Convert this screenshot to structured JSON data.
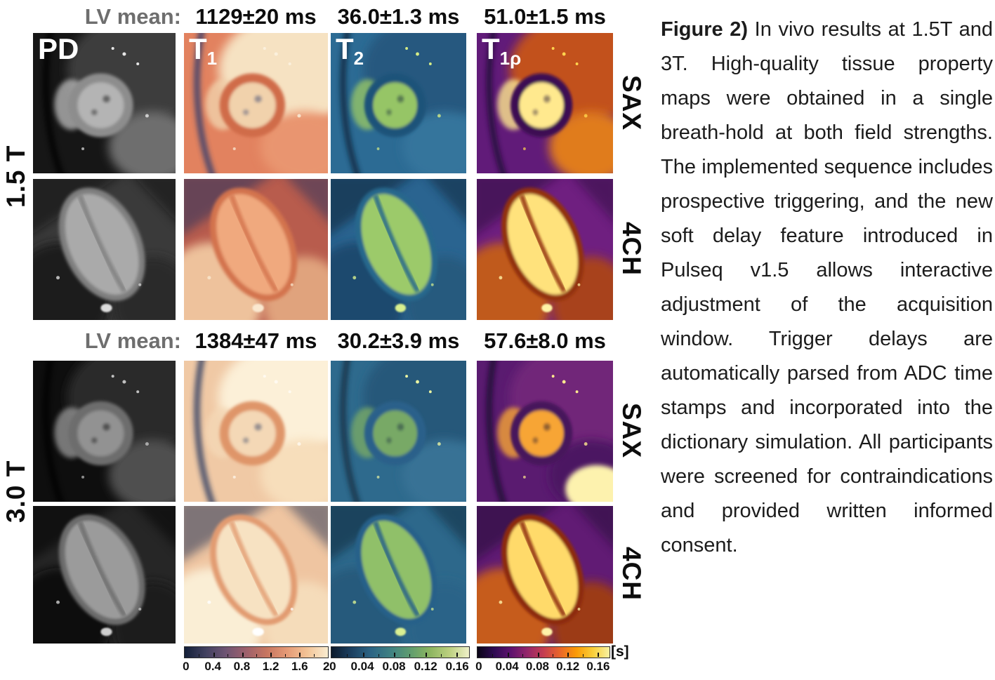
{
  "headers": [
    {
      "prefix": "LV mean:",
      "values": [
        "1129±20 ms",
        "36.0±1.3 ms",
        "51.0±1.5 ms"
      ]
    },
    {
      "prefix": "LV mean:",
      "values": [
        "1384±47 ms",
        "30.2±3.9 ms",
        "57.6±8.0 ms"
      ]
    }
  ],
  "side_labels": {
    "left": [
      "1.5 T",
      "3.0 T"
    ],
    "right": [
      "SAX",
      "4CH",
      "SAX",
      "4CH"
    ]
  },
  "caption": {
    "title": "Figure 2)",
    "body": " In vivo results at 1.5T and 3T. High-quality tissue property maps were obtained in a single breath-hold at both field strengths. The implemented sequence includes prospective triggering, and the new soft delay feature introduced in Pulseq v1.5 allows interactive adjustment of the acquisition window. Trigger delays are automatically parsed from ADC time stamps and incorporated into the dictionary simulation. All participants were screened for contraindications and provided written informed consent."
  },
  "colorbars": [
    {
      "ticks": [
        "0",
        "0.4",
        "0.8",
        "1.2",
        "1.6",
        "2"
      ],
      "span_pct": 100,
      "unit": "",
      "colors": [
        "#131f38",
        "#40405f",
        "#6e5473",
        "#9d606c",
        "#c77560",
        "#e59a76",
        "#f3c497",
        "#f9ecd0"
      ]
    },
    {
      "ticks": [
        "0",
        "0.04",
        "0.08",
        "0.12",
        "0.16"
      ],
      "span_pct": 91,
      "unit": "",
      "colors": [
        "#0c1a2c",
        "#1b3f5f",
        "#2c6484",
        "#3f8183",
        "#5f9c6f",
        "#8cb560",
        "#bcd07f",
        "#eff0c8"
      ]
    },
    {
      "ticks": [
        "0",
        "0.04",
        "0.08",
        "0.12",
        "0.16"
      ],
      "span_pct": 91,
      "unit": "[s]",
      "colors": [
        "#090516",
        "#2e0a52",
        "#5d126e",
        "#93256a",
        "#c43d51",
        "#e9662a",
        "#fb9b06",
        "#f9cf3a",
        "#f7f1a2"
      ]
    }
  ],
  "panels": [
    {
      "name": "pd-1-5t-sax",
      "shape": "sax",
      "label": {
        "base": "PD",
        "sub": ""
      },
      "palette": {
        "bg": "#161616",
        "tissue": "#3d3d3d",
        "tissue2": "#6e6e6e",
        "dark": "#000000",
        "myo": "#8d8d8d",
        "pool": "#b4b4b4",
        "speck": "#e6e6e6"
      }
    },
    {
      "name": "t1-1-5t-sax",
      "shape": "sax",
      "label": {
        "base": "T",
        "sub": "1"
      },
      "palette": {
        "bg": "#e2825f",
        "tissue": "#f6e2c2",
        "tissue2": "#e9956f",
        "dark": "#2c3a6e",
        "myo": "#d06c49",
        "pool": "#f1d2ac",
        "speck": "#fbf0dc"
      }
    },
    {
      "name": "t2-1-5t-sax",
      "shape": "sax",
      "label": {
        "base": "T",
        "sub": "2"
      },
      "palette": {
        "bg": "#2c6b94",
        "tissue": "#25597f",
        "tissue2": "#35759c",
        "dark": "#0f2438",
        "myo": "#1e5279",
        "pool": "#96c566",
        "speck": "#d5ec86"
      }
    },
    {
      "name": "t1rho-1-5t-sax",
      "shape": "sax",
      "label": {
        "base": "T",
        "sub": "1ρ"
      },
      "palette": {
        "bg": "#611b79",
        "tissue": "#c2511d",
        "tissue2": "#e07c1c",
        "dark": "#1e0b31",
        "myo": "#3c1153",
        "pool": "#ffe98e",
        "speck": "#ffd44e"
      }
    },
    {
      "name": "pd-1-5t-4ch",
      "shape": "fourch",
      "label": null,
      "palette": {
        "bg": "#3a3a3a",
        "tissue": "#1f1f1f",
        "tissue2": "#2b2b2b",
        "dark": "#0a0a0a",
        "myo": "#7f7f7f",
        "pool": "#aaaaaa",
        "speck": "#dddddd"
      }
    },
    {
      "name": "t1-1-5t-4ch",
      "shape": "fourch",
      "label": null,
      "palette": {
        "bg": "#b85c4d",
        "tissue": "#eec29c",
        "tissue2": "#e0a37d",
        "dark": "#28335f",
        "myo": "#d3734e",
        "pool": "#f0a97e",
        "speck": "#fae8d0"
      }
    },
    {
      "name": "t2-1-5t-4ch",
      "shape": "fourch",
      "label": null,
      "palette": {
        "bg": "#2a6490",
        "tissue": "#1d4a6e",
        "tissue2": "#255a7e",
        "dark": "#0e2134",
        "myo": "#27678c",
        "pool": "#9cca6b",
        "speck": "#d8f08e"
      }
    },
    {
      "name": "t1rho-1-5t-4ch",
      "shape": "fourch",
      "label": null,
      "palette": {
        "bg": "#6f1f80",
        "tissue": "#c05a1e",
        "tissue2": "#a8431c",
        "dark": "#2a0d3c",
        "myo": "#93300f",
        "pool": "#ffe27b",
        "speck": "#fff3a6"
      }
    },
    {
      "name": "pd-3t-sax",
      "shape": "sax",
      "label": null,
      "palette": {
        "bg": "#0e0e0e",
        "tissue": "#2a2a2a",
        "tissue2": "#505050",
        "dark": "#000000",
        "myo": "#6d6d6d",
        "pool": "#929292",
        "speck": "#c0c0c0"
      }
    },
    {
      "name": "t1-3t-sax",
      "shape": "sax",
      "label": null,
      "palette": {
        "bg": "#f0c9a5",
        "tissue": "#fcf0d8",
        "tissue2": "#f7debb",
        "dark": "#263760",
        "myo": "#df9569",
        "pool": "#f4d8b6",
        "speck": "#fffaf0"
      }
    },
    {
      "name": "t2-3t-sax",
      "shape": "sax",
      "label": null,
      "palette": {
        "bg": "#2e6a8d",
        "tissue": "#28597a",
        "tissue2": "#387295",
        "dark": "#122a3e",
        "myo": "#29618a",
        "pool": "#78a966",
        "speck": "#eaf4a2"
      }
    },
    {
      "name": "t1rho-3t-sax",
      "shape": "sax",
      "label": null,
      "palette": {
        "bg": "#5a1b70",
        "tissue": "#712579",
        "tissue2": "#4c1662",
        "dark": "#190729",
        "myo": "#47145b",
        "pool": "#f7a534",
        "speck": "#ffe98e",
        "patch": "#fdf2ae"
      }
    },
    {
      "name": "pd-3t-4ch",
      "shape": "fourch",
      "label": null,
      "palette": {
        "bg": "#262626",
        "tissue": "#101010",
        "tissue2": "#1c1c1c",
        "dark": "#000000",
        "myo": "#6c6c6c",
        "pool": "#9b9b9b",
        "speck": "#cfcfcf"
      }
    },
    {
      "name": "t1-3t-4ch",
      "shape": "fourch",
      "label": null,
      "palette": {
        "bg": "#efc5a1",
        "tissue": "#faeed5",
        "tissue2": "#f5dcba",
        "dark": "#223254",
        "myo": "#e29b71",
        "pool": "#f7e2c2",
        "speck": "#ffffff"
      }
    },
    {
      "name": "t2-3t-4ch",
      "shape": "fourch",
      "label": null,
      "palette": {
        "bg": "#2d688b",
        "tissue": "#255a7b",
        "tissue2": "#2c6488",
        "dark": "#102639",
        "myo": "#286189",
        "pool": "#90c069",
        "speck": "#daf092"
      }
    },
    {
      "name": "t1rho-3t-4ch",
      "shape": "fourch",
      "label": null,
      "palette": {
        "bg": "#611b74",
        "tissue": "#c65c1b",
        "tissue2": "#9c3a18",
        "dark": "#220a34",
        "myo": "#8d2c10",
        "pool": "#ffda6a",
        "speck": "#fff3a8"
      }
    }
  ]
}
